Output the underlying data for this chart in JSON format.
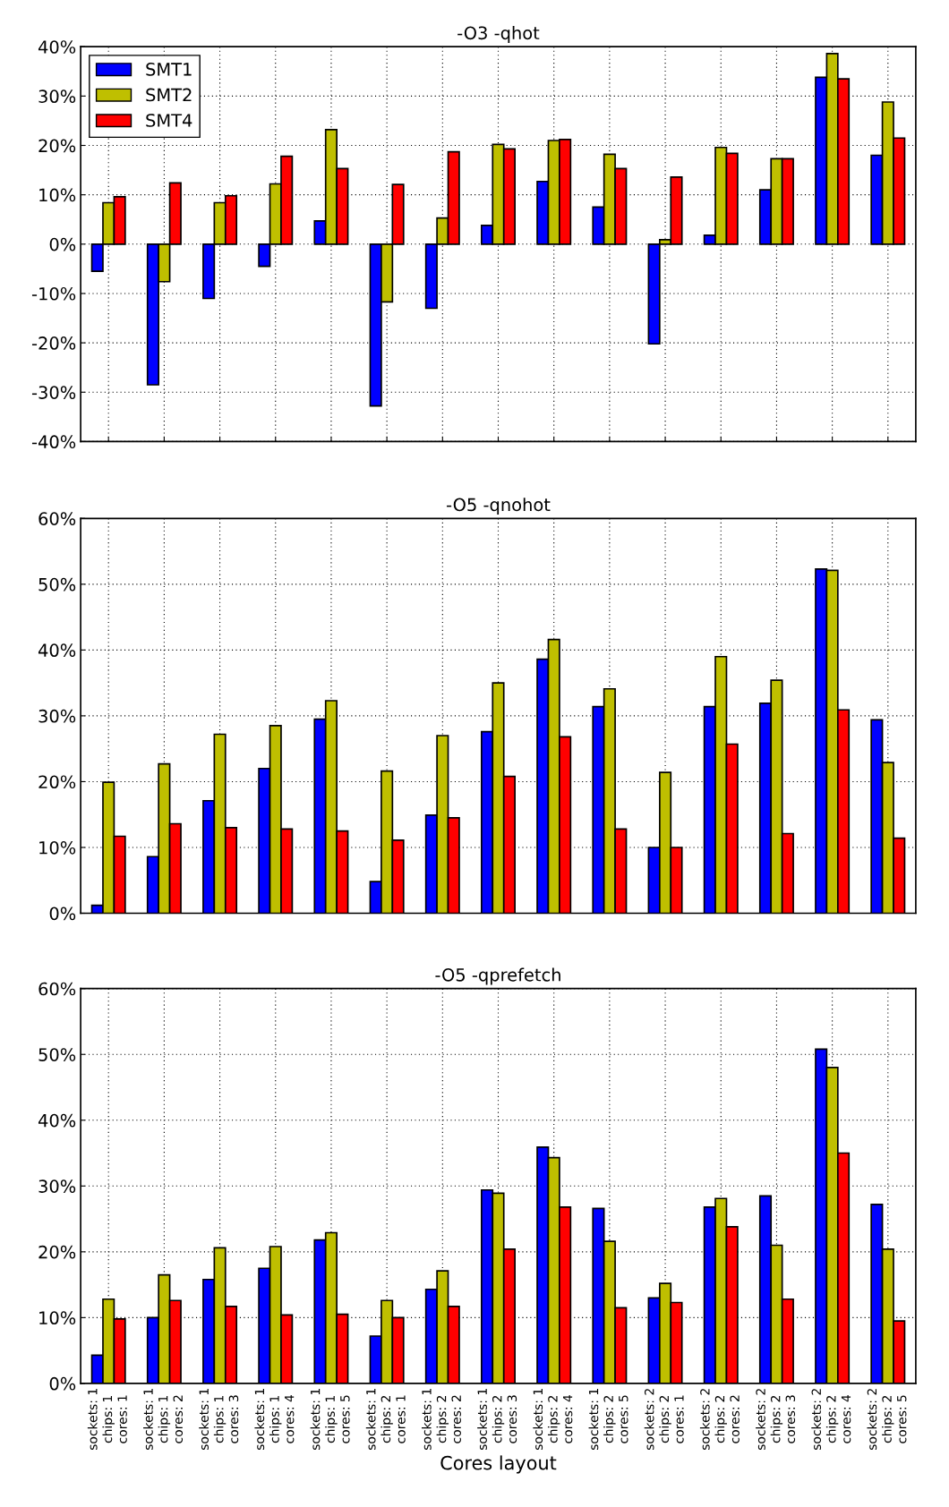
{
  "chart_data": [
    {
      "type": "bar",
      "title": "-O3 -qhot",
      "categories": [
        null,
        null,
        null,
        null,
        null,
        null,
        null,
        null,
        null,
        null,
        null,
        null,
        null,
        null,
        null
      ],
      "series": [
        {
          "name": "SMT1",
          "color": "#0000ff",
          "values": [
            -5.5,
            -28.5,
            -11,
            -4.5,
            4.7,
            -32.8,
            -13,
            3.8,
            12.7,
            7.5,
            -20.2,
            1.8,
            11,
            33.8,
            18
          ]
        },
        {
          "name": "SMT2",
          "color": "#bfbf00",
          "values": [
            8.4,
            -7.6,
            8.4,
            12.2,
            23.2,
            -11.7,
            5.3,
            20.2,
            21,
            18.2,
            0.9,
            19.6,
            17.3,
            38.6,
            28.8
          ]
        },
        {
          "name": "SMT4",
          "color": "#ff0000",
          "values": [
            9.6,
            12.4,
            9.8,
            17.8,
            15.3,
            12.1,
            18.7,
            19.3,
            21.2,
            15.3,
            13.6,
            18.4,
            17.3,
            33.5,
            21.5
          ]
        }
      ],
      "ylim": [
        -40,
        40
      ],
      "yticks": [
        {
          "value": -40,
          "label": "-40%"
        },
        {
          "value": -30,
          "label": "-30%"
        },
        {
          "value": -20,
          "label": "-20%"
        },
        {
          "value": -10,
          "label": "-10%"
        },
        {
          "value": 0,
          "label": "0%"
        },
        {
          "value": 10,
          "label": "10%"
        },
        {
          "value": 20,
          "label": "20%"
        },
        {
          "value": 30,
          "label": "30%"
        },
        {
          "value": 40,
          "label": "40%"
        }
      ],
      "grid": true,
      "legend": "top left",
      "tick_labels": "y"
    },
    {
      "type": "bar",
      "title": "-O5 -qnohot",
      "categories": [
        null,
        null,
        null,
        null,
        null,
        null,
        null,
        null,
        null,
        null,
        null,
        null,
        null,
        null,
        null
      ],
      "series": [
        {
          "color": "#0000ff",
          "values": [
            1.2,
            8.6,
            17.1,
            22,
            29.5,
            4.8,
            14.9,
            27.6,
            38.6,
            31.4,
            10,
            31.4,
            31.9,
            52.3,
            29.4
          ]
        },
        {
          "color": "#bfbf00",
          "values": [
            19.9,
            22.7,
            27.2,
            28.5,
            32.3,
            21.6,
            27,
            35,
            41.6,
            34.1,
            21.4,
            39,
            35.4,
            52.1,
            22.9
          ]
        },
        {
          "color": "#ff0000",
          "values": [
            11.7,
            13.6,
            13,
            12.8,
            12.5,
            11.1,
            14.5,
            20.8,
            26.8,
            12.8,
            10,
            25.7,
            12.1,
            30.9,
            11.4
          ]
        }
      ],
      "ylim": [
        0,
        60
      ],
      "yticks": [
        {
          "value": 0,
          "label": "0%"
        },
        {
          "value": 10,
          "label": "10%"
        },
        {
          "value": 20,
          "label": "20%"
        },
        {
          "value": 30,
          "label": "30%"
        },
        {
          "value": 40,
          "label": "40%"
        },
        {
          "value": 50,
          "label": "50%"
        },
        {
          "value": 60,
          "label": "60%"
        }
      ],
      "grid": true,
      "tick_labels": "y"
    },
    {
      "type": "bar",
      "title": "-O5 -qprefetch",
      "xlabel": "Cores layout",
      "categories": [
        "sockets: 1\nchips: 1\ncores: 1",
        "sockets: 1\nchips: 1\ncores: 2",
        "sockets: 1\nchips: 1\ncores: 3",
        "sockets: 1\nchips: 1\ncores: 4",
        "sockets: 1\nchips: 1\ncores: 5",
        "sockets: 1\nchips: 2\ncores: 1",
        "sockets: 1\nchips: 2\ncores: 2",
        "sockets: 1\nchips: 2\ncores: 3",
        "sockets: 1\nchips: 2\ncores: 4",
        "sockets: 1\nchips: 2\ncores: 5",
        "sockets: 2\nchips: 2\ncores: 1",
        "sockets: 2\nchips: 2\ncores: 2",
        "sockets: 2\nchips: 2\ncores: 3",
        "sockets: 2\nchips: 2\ncores: 4",
        "sockets: 2\nchips: 2\ncores: 5"
      ],
      "series": [
        {
          "color": "#0000ff",
          "values": [
            4.3,
            10,
            15.8,
            17.5,
            21.8,
            7.2,
            14.3,
            29.4,
            35.9,
            26.6,
            13,
            26.8,
            28.5,
            50.8,
            27.2
          ]
        },
        {
          "color": "#bfbf00",
          "values": [
            12.8,
            16.5,
            20.6,
            20.8,
            22.9,
            12.6,
            17.1,
            28.9,
            34.3,
            21.6,
            15.2,
            28.1,
            21,
            48,
            20.4
          ]
        },
        {
          "color": "#ff0000",
          "values": [
            9.8,
            12.6,
            11.7,
            10.4,
            10.5,
            10,
            11.7,
            20.4,
            26.8,
            11.5,
            12.3,
            23.8,
            12.8,
            35,
            9.5
          ]
        }
      ],
      "ylim": [
        0,
        60
      ],
      "yticks": [
        {
          "value": 0,
          "label": "0%"
        },
        {
          "value": 10,
          "label": "10%"
        },
        {
          "value": 20,
          "label": "20%"
        },
        {
          "value": 30,
          "label": "30%"
        },
        {
          "value": 40,
          "label": "40%"
        },
        {
          "value": 50,
          "label": "50%"
        },
        {
          "value": 60,
          "label": "60%"
        }
      ],
      "grid": true
    }
  ]
}
